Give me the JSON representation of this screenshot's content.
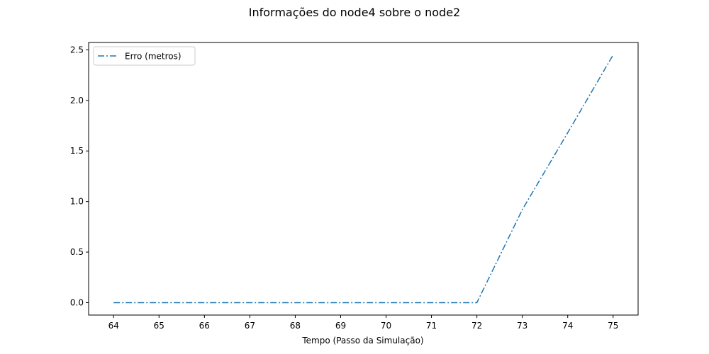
{
  "chart_data": {
    "type": "line",
    "title": "Informações do node4 sobre o node2",
    "xlabel": "Tempo (Passo da Simulação)",
    "ylabel": "",
    "x": [
      64,
      65,
      66,
      67,
      68,
      69,
      70,
      71,
      72,
      73,
      74,
      75
    ],
    "series": [
      {
        "name": "Erro (metros)",
        "values": [
          0,
          0,
          0,
          0,
          0,
          0,
          0,
          0,
          0,
          0.92,
          1.68,
          2.45
        ],
        "color": "#1f77b4",
        "line_style": "dash-dot"
      }
    ],
    "xlim": [
      63.45,
      75.55
    ],
    "ylim": [
      -0.1225,
      2.5725
    ],
    "xticks": [
      "64",
      "65",
      "66",
      "67",
      "68",
      "69",
      "70",
      "71",
      "72",
      "73",
      "74",
      "75"
    ],
    "yticks": [
      "0.0",
      "0.5",
      "1.0",
      "1.5",
      "2.0",
      "2.5"
    ],
    "ytick_values": [
      0,
      0.5,
      1.0,
      1.5,
      2.0,
      2.5
    ],
    "grid": false,
    "legend_position": "top-left"
  }
}
